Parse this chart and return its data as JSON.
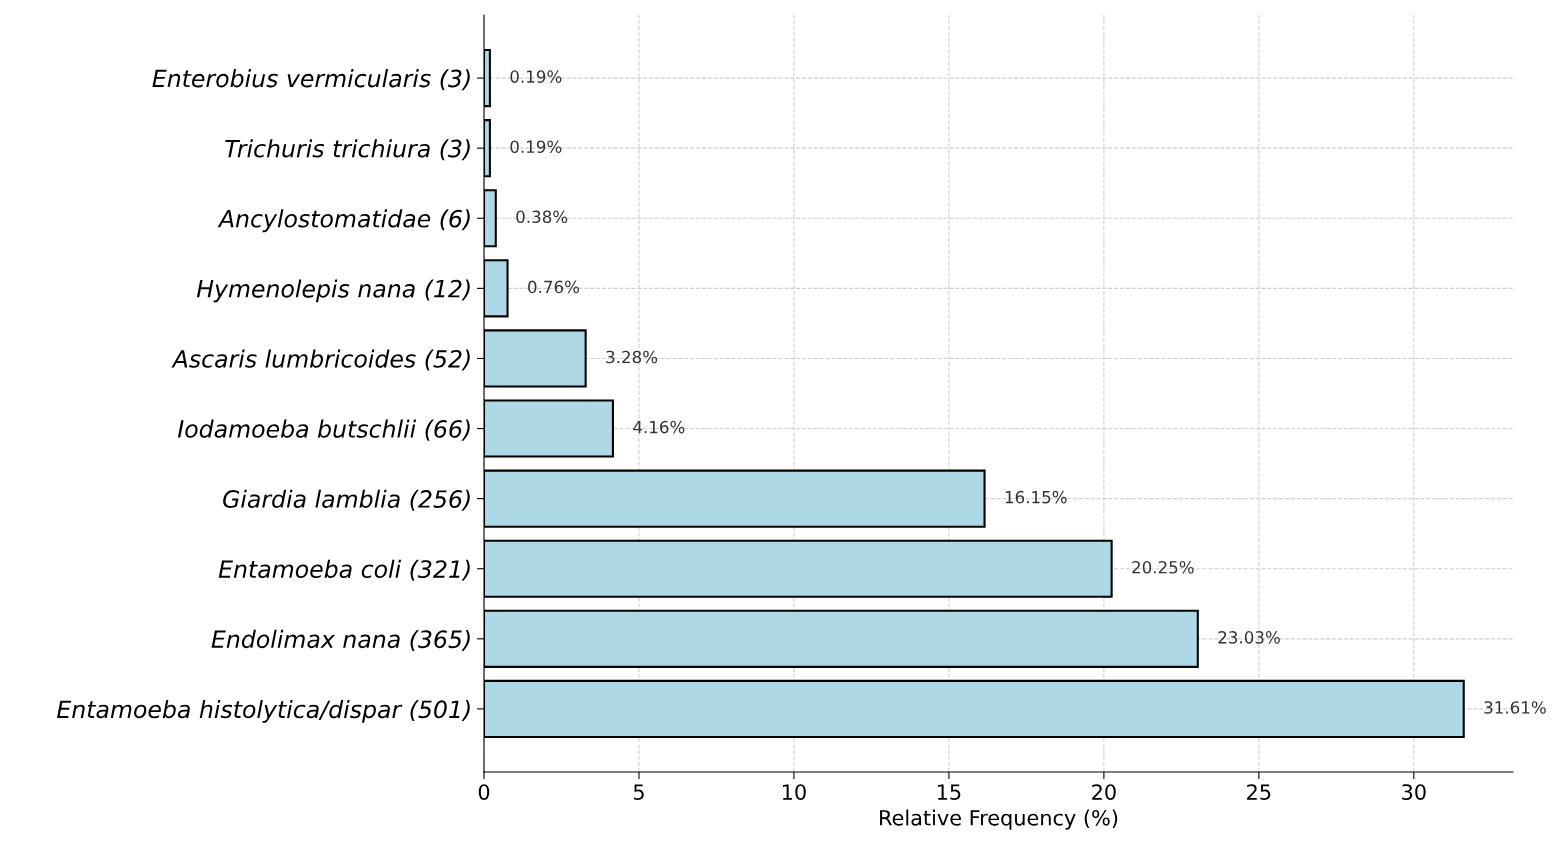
{
  "chart_data": {
    "type": "bar",
    "orientation": "horizontal",
    "xlabel": "Relative Frequency (%)",
    "categories": [
      "Enterobius vermicularis (3)",
      "Trichuris trichiura (3)",
      "Ancylostomatidae (6)",
      "Hymenolepis nana (12)",
      "Ascaris lumbricoides (52)",
      "Iodamoeba butschlii (66)",
      "Giardia lamblia (256)",
      "Entamoeba coli (321)",
      "Endolimax nana (365)",
      "Entamoeba histolytica/dispar (501)"
    ],
    "values": [
      0.19,
      0.19,
      0.38,
      0.76,
      3.28,
      4.16,
      16.15,
      20.25,
      23.03,
      31.61
    ],
    "value_labels": [
      "0.19%",
      "0.19%",
      "0.38%",
      "0.76%",
      "3.28%",
      "4.16%",
      "16.15%",
      "20.25%",
      "23.03%",
      "31.61%"
    ],
    "color": "#add8e6",
    "xlim": [
      0,
      33.2
    ],
    "xticks": [
      0,
      5,
      10,
      15,
      20,
      25,
      30
    ],
    "grid": true
  }
}
